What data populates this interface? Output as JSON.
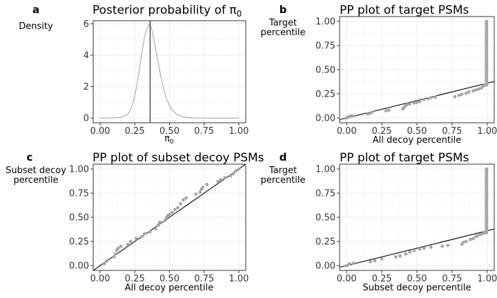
{
  "chart_data": [
    {
      "panel": "a",
      "type": "line",
      "title": "Posterior probability of π",
      "title_sub": "0",
      "xlabel": "π",
      "xlabel_sub": "0",
      "ylabel": [
        "Density"
      ],
      "xlim": [
        -0.05,
        1.05
      ],
      "ylim": [
        -0.3,
        6.2
      ],
      "xticks": [
        0,
        0.25,
        0.5,
        0.75,
        1
      ],
      "xtick_labels": [
        "0.00",
        "0.25",
        "0.50",
        "0.75",
        "1.00"
      ],
      "yticks": [
        0,
        2,
        4,
        6
      ],
      "ytick_labels": [
        "0",
        "2",
        "4",
        "6"
      ],
      "grid": true,
      "density_curve": {
        "x": [
          0,
          0.1,
          0.15,
          0.2,
          0.22,
          0.24,
          0.26,
          0.28,
          0.3,
          0.32,
          0.34,
          0.35,
          0.36,
          0.37,
          0.38,
          0.4,
          0.42,
          0.44,
          0.46,
          0.48,
          0.5,
          0.52,
          0.55,
          0.6,
          0.65,
          0.7,
          0.8,
          1.0
        ],
        "y": [
          0,
          0.01,
          0.05,
          0.25,
          0.55,
          1.05,
          1.85,
          2.9,
          4.1,
          5.15,
          5.8,
          5.93,
          5.9,
          5.7,
          5.35,
          4.45,
          3.45,
          2.55,
          1.8,
          1.2,
          0.8,
          0.5,
          0.25,
          0.07,
          0.02,
          0.005,
          0,
          0
        ]
      },
      "vline_x": 0.36
    },
    {
      "panel": "b",
      "type": "scatter",
      "title": "PP plot of target PSMs",
      "xlabel": "All decoy percentile",
      "ylabel": [
        "Target",
        "percentile"
      ],
      "xlim": [
        -0.05,
        1.05
      ],
      "ylim": [
        -0.05,
        1.05
      ],
      "xticks": [
        0,
        0.25,
        0.5,
        0.75,
        1
      ],
      "xtick_labels": [
        "0.00",
        "0.25",
        "0.50",
        "0.75",
        "1.00"
      ],
      "yticks": [
        0,
        0.25,
        0.5,
        0.75,
        1
      ],
      "ytick_labels": [
        "0.00",
        "0.25",
        "0.50",
        "0.75",
        "1.00"
      ],
      "grid": true,
      "ref_line": {
        "intercept": 0,
        "slope": 0.36
      },
      "points": {
        "x": [
          0.0,
          0.01,
          0.02,
          0.03,
          0.04,
          0.15,
          0.17,
          0.18,
          0.28,
          0.3,
          0.4,
          0.41,
          0.42,
          0.43,
          0.45,
          0.48,
          0.5,
          0.52,
          0.55,
          0.58,
          0.6,
          0.63,
          0.77,
          0.8,
          0.82,
          0.85,
          0.87,
          0.9,
          0.92,
          0.94,
          0.96,
          0.97,
          0.98
        ],
        "y": [
          0.0,
          0.01,
          0.015,
          0.02,
          0.02,
          0.04,
          0.05,
          0.06,
          0.075,
          0.08,
          0.095,
          0.11,
          0.13,
          0.14,
          0.145,
          0.155,
          0.16,
          0.17,
          0.19,
          0.2,
          0.21,
          0.215,
          0.22,
          0.235,
          0.245,
          0.255,
          0.27,
          0.28,
          0.29,
          0.3,
          0.31,
          0.33,
          0.34
        ]
      },
      "vertical_stack": {
        "x": 0.995,
        "y_from": 0.34,
        "y_to": 1.0
      }
    },
    {
      "panel": "c",
      "type": "scatter",
      "title": "PP plot of subset decoy PSMs",
      "xlabel": "All decoy percentile",
      "ylabel": [
        "Subset decoy",
        "percentile"
      ],
      "xlim": [
        -0.05,
        1.05
      ],
      "ylim": [
        -0.05,
        1.05
      ],
      "xticks": [
        0,
        0.25,
        0.5,
        0.75,
        1
      ],
      "xtick_labels": [
        "0.00",
        "0.25",
        "0.50",
        "0.75",
        "1.00"
      ],
      "yticks": [
        0,
        0.25,
        0.5,
        0.75,
        1
      ],
      "ytick_labels": [
        "0.00",
        "0.25",
        "0.50",
        "0.75",
        "1.00"
      ],
      "grid": true,
      "ref_line": {
        "intercept": 0,
        "slope": 1
      },
      "points": {
        "x": [
          0.03,
          0.05,
          0.1,
          0.11,
          0.12,
          0.13,
          0.15,
          0.2,
          0.22,
          0.26,
          0.3,
          0.32,
          0.36,
          0.4,
          0.42,
          0.43,
          0.47,
          0.48,
          0.49,
          0.5,
          0.52,
          0.54,
          0.56,
          0.58,
          0.6,
          0.62,
          0.69,
          0.72,
          0.73,
          0.74,
          0.77,
          0.85,
          0.87,
          0.9,
          0.94,
          0.96,
          0.98,
          1.0
        ],
        "y": [
          0.02,
          0.05,
          0.09,
          0.12,
          0.16,
          0.18,
          0.2,
          0.22,
          0.25,
          0.28,
          0.3,
          0.33,
          0.35,
          0.38,
          0.42,
          0.45,
          0.47,
          0.5,
          0.52,
          0.53,
          0.55,
          0.58,
          0.6,
          0.64,
          0.68,
          0.7,
          0.74,
          0.76,
          0.79,
          0.81,
          0.84,
          0.87,
          0.89,
          0.91,
          0.93,
          0.95,
          0.98,
          1.0
        ]
      }
    },
    {
      "panel": "d",
      "type": "scatter",
      "title": "PP plot of target PSMs",
      "xlabel": "Subset decoy percentile",
      "ylabel": [
        "Target",
        "percentile"
      ],
      "xlim": [
        -0.05,
        1.05
      ],
      "ylim": [
        -0.05,
        1.05
      ],
      "xticks": [
        0,
        0.25,
        0.5,
        0.75,
        1
      ],
      "xtick_labels": [
        "0.00",
        "0.25",
        "0.50",
        "0.75",
        "1.00"
      ],
      "yticks": [
        0,
        0.25,
        0.5,
        0.75,
        1
      ],
      "ytick_labels": [
        "0.00",
        "0.25",
        "0.50",
        "0.75",
        "1.00"
      ],
      "grid": true,
      "ref_line": {
        "intercept": 0,
        "slope": 0.36
      },
      "points": {
        "x": [
          0.0,
          0.02,
          0.05,
          0.17,
          0.2,
          0.25,
          0.35,
          0.38,
          0.42,
          0.45,
          0.48,
          0.52,
          0.55,
          0.6,
          0.68,
          0.72,
          0.82,
          0.83,
          0.85,
          0.88,
          0.9,
          0.92,
          0.93,
          0.95,
          0.97,
          0.98
        ],
        "y": [
          0.0,
          0.02,
          0.025,
          0.04,
          0.05,
          0.07,
          0.09,
          0.1,
          0.12,
          0.14,
          0.155,
          0.17,
          0.18,
          0.19,
          0.2,
          0.21,
          0.22,
          0.24,
          0.25,
          0.27,
          0.28,
          0.3,
          0.31,
          0.32,
          0.33,
          0.34
        ]
      },
      "vertical_stack": {
        "x": 0.995,
        "y_from": 0.34,
        "y_to": 1.0
      }
    }
  ],
  "style": {
    "line_color": "#000000",
    "density_color": "#a6a6a6",
    "point_color": "#a6a6a6",
    "grid_color": "#ebebeb",
    "frame_color": "#333333"
  }
}
